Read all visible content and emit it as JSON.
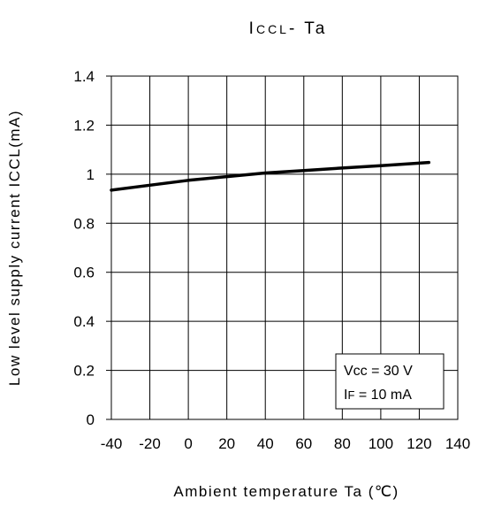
{
  "chart_data": {
    "type": "line",
    "title": {
      "main": "I",
      "sub": "CCL",
      "rest": "- Ta"
    },
    "xlabel": "Ambient temperature Ta (℃)",
    "ylabel": "Low level supply current ICCL(mA)",
    "xlim": [
      -40,
      140
    ],
    "ylim": [
      0,
      1.4
    ],
    "x_ticks": [
      "-40",
      "-20",
      "0",
      "20",
      "40",
      "60",
      "80",
      "100",
      "120",
      "140"
    ],
    "y_ticks": [
      "0",
      "0.2",
      "0.4",
      "0.6",
      "0.8",
      "1",
      "1.2",
      "1.4"
    ],
    "grid": true,
    "series": [
      {
        "x": [
          -40,
          -20,
          0,
          20,
          40,
          60,
          80,
          100,
          125
        ],
        "y": [
          0.935,
          0.955,
          0.975,
          0.99,
          1.005,
          1.015,
          1.025,
          1.035,
          1.048
        ]
      }
    ],
    "legend": {
      "position": "bottom-right",
      "lines": [
        {
          "main": "Vcc = 30 V",
          "sub": ""
        },
        {
          "main": "I",
          "sub": "F",
          "rest": " = 10 mA"
        }
      ]
    },
    "line_color": "#000000",
    "grid_color": "#000000"
  }
}
